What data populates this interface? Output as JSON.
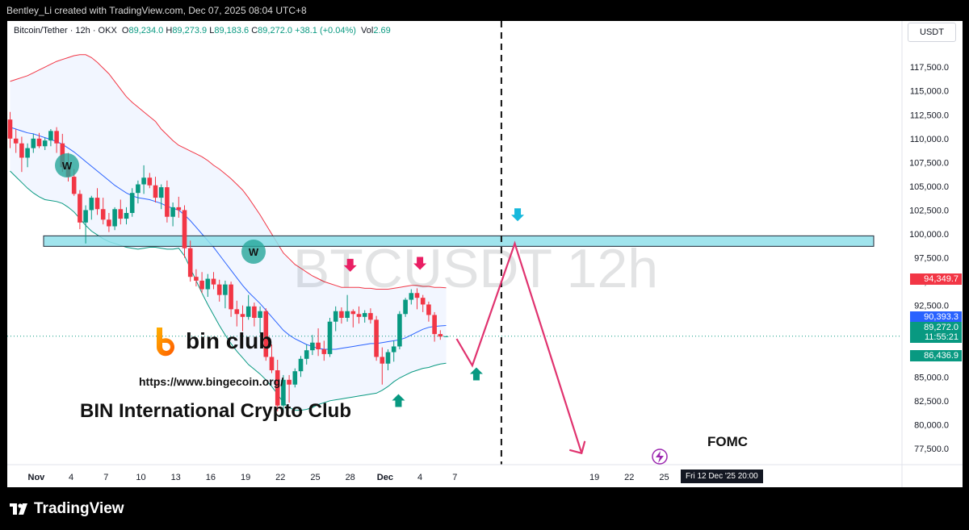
{
  "header": {
    "publish_line": "Bentley_Li created with TradingView.com, Dec 07, 2025 08:04 UTC+8"
  },
  "legend": {
    "symbol": "Bitcoin/Tether · 12h · OKX",
    "o_label": "O",
    "o": "89,234.0",
    "h_label": "H",
    "h": "89,273.9",
    "l_label": "L",
    "l": "89,183.6",
    "c_label": "C",
    "c": "89,272.0",
    "change": "+38.1 (+0.04%)",
    "vol_label": "Vol",
    "vol": "2.69"
  },
  "currency_button": "USDT",
  "watermark": "BTCUSDT 12h",
  "branding": {
    "logo_text": "bin club",
    "url": "https://www.bingecoin.org/",
    "club_name": "BIN International Crypto Club",
    "footer_logo": "TradingView"
  },
  "annotations": {
    "event_label": "FOMC",
    "pattern_marker": "W",
    "crosshair_label": "Fri 12 Dec '25   20:00"
  },
  "price_tags": [
    {
      "value": "94,349.7",
      "color": "#f23645"
    },
    {
      "value": "90,393.3",
      "color": "#2962ff"
    },
    {
      "value": "89,272.0",
      "color": "#089981"
    },
    {
      "value": "11:55:21",
      "color": "#089981"
    },
    {
      "value": "86,436.9",
      "color": "#089981"
    }
  ],
  "colors": {
    "up": "#089981",
    "down": "#f23645",
    "upper_band": "#f23645",
    "basis": "#2962ff",
    "lower_band": "#089981",
    "zone": "#8fdfea",
    "projection": "#e0336f",
    "cyan_arrow": "#16b8dc"
  },
  "chart_data": {
    "type": "candlestick",
    "title": "Bitcoin/Tether · 12h · OKX",
    "ylim": [
      75800,
      119800
    ],
    "y_ticks": [
      77500,
      80000,
      82500,
      85000,
      87500,
      90000,
      92500,
      95000,
      97500,
      100000,
      102500,
      105000,
      107500,
      110000,
      112500,
      115000,
      117500
    ],
    "x_ticks": [
      {
        "label": "Nov",
        "bar": 4.5
      },
      {
        "label": "4",
        "bar": 10.5
      },
      {
        "label": "7",
        "bar": 16.5
      },
      {
        "label": "10",
        "bar": 22.5
      },
      {
        "label": "13",
        "bar": 28.5
      },
      {
        "label": "16",
        "bar": 34.5
      },
      {
        "label": "19",
        "bar": 40.5
      },
      {
        "label": "22",
        "bar": 46.5
      },
      {
        "label": "25",
        "bar": 52.5
      },
      {
        "label": "28",
        "bar": 58.5
      },
      {
        "label": "Dec",
        "bar": 64.5
      },
      {
        "label": "4",
        "bar": 70.5
      },
      {
        "label": "7",
        "bar": 76.5
      },
      {
        "label": "19",
        "bar": 100.5
      },
      {
        "label": "22",
        "bar": 106.5
      },
      {
        "label": "25",
        "bar": 112.5
      }
    ],
    "ohlc": [
      [
        112000,
        112800,
        109000,
        110000
      ],
      [
        110000,
        111000,
        108500,
        109500
      ],
      [
        109500,
        110200,
        106500,
        108000
      ],
      [
        108000,
        109500,
        107000,
        109000
      ],
      [
        109000,
        110500,
        108500,
        110000
      ],
      [
        110000,
        110600,
        109000,
        109200
      ],
      [
        109200,
        110100,
        108800,
        109800
      ],
      [
        109800,
        111000,
        109200,
        110800
      ],
      [
        110800,
        111200,
        108500,
        109500
      ],
      [
        109500,
        110500,
        106500,
        107000
      ],
      [
        107000,
        108500,
        105500,
        106000
      ],
      [
        106000,
        106800,
        104000,
        104200
      ],
      [
        104200,
        104600,
        100500,
        101200
      ],
      [
        101200,
        103000,
        99000,
        102500
      ],
      [
        102500,
        104000,
        101500,
        103800
      ],
      [
        103800,
        104800,
        102000,
        102600
      ],
      [
        102600,
        103800,
        101000,
        101500
      ],
      [
        101500,
        102200,
        100200,
        100800
      ],
      [
        100800,
        102800,
        100400,
        102600
      ],
      [
        102600,
        103600,
        101000,
        101600
      ],
      [
        101600,
        102800,
        101000,
        102200
      ],
      [
        102200,
        104800,
        101800,
        104300
      ],
      [
        104300,
        105600,
        103200,
        105200
      ],
      [
        105200,
        107200,
        104200,
        105900
      ],
      [
        105900,
        106400,
        104800,
        105100
      ],
      [
        105100,
        106000,
        103300,
        103800
      ],
      [
        103800,
        105200,
        102600,
        104900
      ],
      [
        104900,
        105600,
        101200,
        101800
      ],
      [
        101800,
        103300,
        100800,
        102800
      ],
      [
        102800,
        103900,
        101700,
        102500
      ],
      [
        102500,
        103000,
        97500,
        98500
      ],
      [
        98500,
        99300,
        95000,
        95500
      ],
      [
        95500,
        96300,
        94500,
        95100
      ],
      [
        95100,
        96000,
        93800,
        94200
      ],
      [
        94200,
        95800,
        93400,
        95300
      ],
      [
        95300,
        96000,
        94200,
        94700
      ],
      [
        94700,
        95200,
        92900,
        93600
      ],
      [
        93600,
        95100,
        92200,
        94700
      ],
      [
        94700,
        95000,
        91300,
        92100
      ],
      [
        92100,
        93000,
        90300,
        91600
      ],
      [
        91600,
        92500,
        89800,
        91300
      ],
      [
        91300,
        93600,
        91000,
        92400
      ],
      [
        92400,
        92800,
        90300,
        91200
      ],
      [
        91200,
        92400,
        89600,
        91900
      ],
      [
        91900,
        92200,
        86700,
        87100
      ],
      [
        87100,
        88400,
        85400,
        85700
      ],
      [
        85700,
        86800,
        81400,
        82000
      ],
      [
        82000,
        85200,
        81300,
        84700
      ],
      [
        84700,
        85200,
        82300,
        84200
      ],
      [
        84200,
        85900,
        83900,
        85600
      ],
      [
        85600,
        87200,
        85000,
        86900
      ],
      [
        86900,
        88400,
        86300,
        87800
      ],
      [
        87800,
        89400,
        87300,
        88600
      ],
      [
        88600,
        90100,
        87200,
        87900
      ],
      [
        87900,
        88800,
        86700,
        87400
      ],
      [
        87400,
        91200,
        87100,
        90800
      ],
      [
        90800,
        92400,
        89800,
        91900
      ],
      [
        91900,
        92300,
        90600,
        91200
      ],
      [
        91200,
        93600,
        90800,
        91900
      ],
      [
        91900,
        92100,
        90200,
        91600
      ],
      [
        91600,
        92400,
        90600,
        91300
      ],
      [
        91300,
        92000,
        90700,
        91700
      ],
      [
        91700,
        92200,
        90600,
        91000
      ],
      [
        91000,
        91400,
        86700,
        87100
      ],
      [
        87100,
        88100,
        84200,
        86400
      ],
      [
        86400,
        87900,
        85700,
        87600
      ],
      [
        87600,
        88800,
        86600,
        88200
      ],
      [
        88200,
        91900,
        87900,
        91600
      ],
      [
        91600,
        93300,
        91300,
        93100
      ],
      [
        93100,
        94200,
        92600,
        93800
      ],
      [
        93800,
        94300,
        92100,
        93300
      ],
      [
        93300,
        93600,
        91800,
        92600
      ],
      [
        92600,
        92900,
        90800,
        91500
      ],
      [
        91500,
        91800,
        88700,
        89500
      ],
      [
        89500,
        89900,
        88900,
        89234
      ],
      [
        89234,
        89274,
        89184,
        89272
      ]
    ],
    "bollinger": {
      "upper": [
        116000,
        116200,
        116400,
        116600,
        116900,
        117200,
        117500,
        117800,
        118100,
        118300,
        118500,
        118700,
        118800,
        118800,
        118500,
        118000,
        117400,
        116800,
        116000,
        115200,
        114400,
        113800,
        113300,
        112800,
        112300,
        111800,
        111000,
        110400,
        109800,
        109300,
        109000,
        108700,
        108400,
        108100,
        107700,
        107200,
        106800,
        106300,
        105800,
        105200,
        104600,
        103800,
        102900,
        102000,
        101000,
        100000,
        99000,
        98000,
        97400,
        96800,
        96400,
        96000,
        95600,
        95300,
        95000,
        94800,
        94600,
        94400,
        94400,
        94400,
        94400,
        94300,
        94300,
        94200,
        94200,
        94200,
        94300,
        94400,
        94500,
        94600,
        94600,
        94500,
        94500,
        94400,
        94400,
        94350
      ],
      "basis": [
        111200,
        111000,
        110800,
        110600,
        110500,
        110300,
        110100,
        109900,
        109700,
        109400,
        109000,
        108600,
        108100,
        107600,
        107100,
        106600,
        106100,
        105600,
        105100,
        104700,
        104300,
        104000,
        103800,
        103700,
        103600,
        103400,
        103200,
        102900,
        102700,
        102500,
        102000,
        101400,
        100700,
        100000,
        99300,
        98600,
        97800,
        97000,
        96200,
        95400,
        94600,
        93900,
        93300,
        92700,
        92000,
        91300,
        90600,
        89900,
        89400,
        89000,
        88700,
        88400,
        88200,
        88000,
        87900,
        87900,
        87900,
        88000,
        88100,
        88200,
        88300,
        88400,
        88500,
        88500,
        88600,
        88700,
        88800,
        88900,
        89100,
        89400,
        89700,
        90000,
        90200,
        90300,
        90350,
        90393
      ],
      "lower": [
        106600,
        106000,
        105400,
        104800,
        104300,
        103900,
        103600,
        103500,
        103400,
        103200,
        102800,
        102300,
        101600,
        100900,
        100300,
        99900,
        99500,
        99200,
        99000,
        98800,
        98600,
        98500,
        98400,
        98500,
        98600,
        98600,
        98500,
        98400,
        98400,
        98500,
        97700,
        96400,
        95100,
        93800,
        92600,
        91500,
        90400,
        89400,
        88500,
        87700,
        87000,
        86300,
        85800,
        85300,
        84700,
        84000,
        83200,
        82300,
        81800,
        81500,
        81500,
        81600,
        81800,
        82100,
        82300,
        82500,
        82600,
        82700,
        82800,
        82900,
        83000,
        83100,
        83200,
        83300,
        83600,
        84000,
        84500,
        84900,
        85200,
        85500,
        85700,
        85900,
        86000,
        86200,
        86350,
        86437
      ]
    },
    "key_zone": {
      "from": 98700,
      "to": 99800
    },
    "current_price": 89272.0,
    "projection_path": [
      {
        "bar": 76.8,
        "price": 89000
      },
      {
        "bar": 79.5,
        "price": 86200
      },
      {
        "bar": 86.8,
        "price": 99000
      },
      {
        "bar": 98.3,
        "price": 77000
      }
    ],
    "fomc_bar": 84.5
  }
}
